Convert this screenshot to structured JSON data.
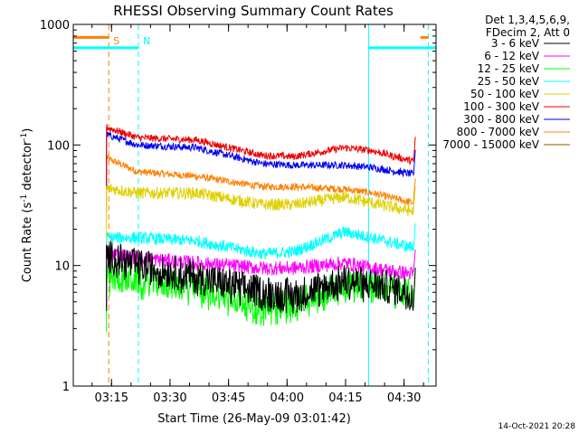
{
  "chart_data": {
    "type": "line",
    "title": "RHESSI Observing Summary Count Rates",
    "xlabel": "Start Time (26-May-09 03:01:42)",
    "ylabel": {
      "prefix": "Count Rate (s",
      "sup1": "-1",
      "mid": " detector",
      "sup2": "-1",
      "suffix": ")"
    },
    "x_range_minutes": [
      3.5,
      96.5
    ],
    "y_range": [
      1,
      1000
    ],
    "y_scale": "log",
    "x_ticks": [
      {
        "min": 13.3,
        "label": "03:15"
      },
      {
        "min": 28.3,
        "label": "03:30"
      },
      {
        "min": 43.3,
        "label": "03:45"
      },
      {
        "min": 58.3,
        "label": "04:00"
      },
      {
        "min": 73.3,
        "label": "04:15"
      },
      {
        "min": 88.3,
        "label": "04:30"
      }
    ],
    "y_ticks": [
      {
        "value": 1,
        "label": "1"
      },
      {
        "value": 10,
        "label": "10"
      },
      {
        "value": 100,
        "label": "100"
      },
      {
        "value": 1000,
        "label": "1000"
      }
    ],
    "legend": {
      "header": [
        "Det 1,3,4,5,6,9,",
        "FDecim 2, Att 0"
      ],
      "placement": "right"
    },
    "series": [
      {
        "name": "3 - 6 keV",
        "color": "#000000",
        "knots_min": [
          12,
          20,
          35,
          52,
          60,
          73,
          80,
          90.8
        ],
        "knots_val": [
          12,
          10,
          8,
          6,
          5.7,
          7.5,
          7,
          6
        ],
        "noise": 0.14
      },
      {
        "name": "6 - 12 keV",
        "color": "#ff00ff",
        "knots_min": [
          12,
          20,
          35,
          52,
          60,
          73,
          80,
          90.8
        ],
        "knots_val": [
          13,
          11.5,
          10.5,
          9.5,
          9.5,
          10.5,
          9.5,
          8.5
        ],
        "noise": 0.06
      },
      {
        "name": "12 - 25 keV",
        "color": "#00ff00",
        "knots_min": [
          12,
          20,
          35,
          52,
          60,
          73,
          80,
          90.8
        ],
        "knots_val": [
          8,
          7.5,
          6.5,
          4.5,
          4.8,
          7,
          7,
          5.8
        ],
        "noise": 0.12
      },
      {
        "name": "25 - 50 keV",
        "color": "#00ffff",
        "knots_min": [
          12,
          20,
          35,
          52,
          60,
          73,
          80,
          90.8
        ],
        "knots_val": [
          17,
          17,
          16,
          12.5,
          13,
          19,
          17,
          14
        ],
        "noise": 0.05
      },
      {
        "name": "50 - 100 keV",
        "color": "#e0d000",
        "knots_min": [
          12,
          20,
          35,
          52,
          60,
          73,
          80,
          90.8
        ],
        "knots_val": [
          44,
          40,
          40,
          32,
          32,
          37,
          33,
          28
        ],
        "noise": 0.05
      },
      {
        "name": "100 - 300 keV",
        "color": "#ee0000",
        "knots_min": [
          12,
          20,
          35,
          52,
          60,
          73,
          80,
          90.8
        ],
        "knots_val": [
          140,
          115,
          110,
          82,
          80,
          95,
          90,
          73
        ],
        "noise": 0.03
      },
      {
        "name": "300 - 800 keV",
        "color": "#0000ee",
        "knots_min": [
          12,
          20,
          35,
          52,
          60,
          73,
          80,
          90.8
        ],
        "knots_val": [
          122,
          100,
          95,
          70,
          68,
          68,
          65,
          57
        ],
        "noise": 0.03
      },
      {
        "name": "800 - 7000 keV",
        "color": "#ff8000",
        "knots_min": [
          12,
          20,
          35,
          52,
          60,
          73,
          80,
          90.8
        ],
        "knots_val": [
          78,
          60,
          55,
          45,
          45,
          43,
          40,
          33
        ],
        "noise": 0.03
      },
      {
        "name": "7000 - 15000 keV",
        "color": "#8b5a00",
        "knots_min": [],
        "knots_val": [],
        "noise": 0
      }
    ],
    "annotations": [
      {
        "label": "S",
        "color": "#ff8000",
        "x_min": 12.6
      },
      {
        "label": "N",
        "color": "#00ffff",
        "x_min": 20.2
      }
    ],
    "vertical_markers": [
      {
        "color": "#ff8000",
        "x_min": 12.6,
        "style": "dashed"
      },
      {
        "color": "#00ffff",
        "x_min": 20.2,
        "style": "dashed"
      },
      {
        "color": "#00ffff",
        "x_min": 79.2,
        "style": "solid"
      },
      {
        "color": "#00ffff",
        "x_min": 94.5,
        "style": "dashed"
      }
    ],
    "top_bars": [
      {
        "color": "#ff8000",
        "x_start": 3.5,
        "x_end": 12.6,
        "value": 780
      },
      {
        "color": "#00ffff",
        "x_start": 3.5,
        "x_end": 20.2,
        "value": 640
      },
      {
        "color": "#00ffff",
        "x_start": 79.2,
        "x_end": 96.5,
        "value": 640
      },
      {
        "color": "#ff8000",
        "x_start": 92.5,
        "x_end": 94.5,
        "value": 780
      }
    ],
    "timestamp": "14-Oct-2021 20:28"
  }
}
